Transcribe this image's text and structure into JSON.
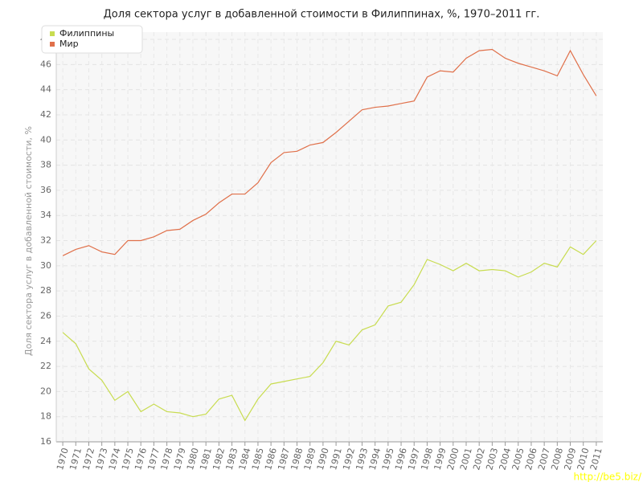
{
  "chart_data": {
    "type": "line",
    "title": "Доля сектора услуг в добавленной стоимости в Филиппинах, %, 1970–2011 гг.",
    "y_label": "Доля сектора услуг в добавленной стоимости, %",
    "watermark": "http://be5.biz/",
    "x": [
      1970,
      1971,
      1972,
      1973,
      1974,
      1975,
      1976,
      1977,
      1978,
      1979,
      1980,
      1981,
      1982,
      1983,
      1984,
      1985,
      1986,
      1987,
      1988,
      1989,
      1990,
      1991,
      1992,
      1993,
      1994,
      1995,
      1996,
      1997,
      1998,
      1999,
      2000,
      2001,
      2002,
      2003,
      2004,
      2005,
      2006,
      2007,
      2008,
      2009,
      2010,
      2011
    ],
    "series": [
      {
        "name": "Филиппины",
        "color": "#c8dc50",
        "values": [
          24.7,
          23.8,
          21.8,
          20.9,
          19.3,
          20.0,
          18.4,
          19.0,
          18.4,
          18.3,
          18.0,
          18.2,
          19.4,
          19.7,
          17.7,
          19.4,
          20.6,
          20.8,
          21.0,
          21.2,
          22.3,
          24.0,
          23.7,
          24.9,
          25.3,
          26.8,
          27.1,
          28.5,
          30.5,
          30.1,
          29.6,
          30.2,
          29.6,
          29.7,
          29.6,
          29.1,
          29.5,
          30.2,
          29.9,
          31.5,
          30.9,
          32.0
        ]
      },
      {
        "name": "Мир",
        "color": "#e0704a",
        "values": [
          30.8,
          31.3,
          31.6,
          31.1,
          30.9,
          32.0,
          32.0,
          32.3,
          32.8,
          32.9,
          33.6,
          34.1,
          35.0,
          35.7,
          35.7,
          36.6,
          38.2,
          39.0,
          39.1,
          39.6,
          39.8,
          40.6,
          41.5,
          42.4,
          42.6,
          42.7,
          42.9,
          43.1,
          45.0,
          45.5,
          45.4,
          46.5,
          47.1,
          47.2,
          46.5,
          46.1,
          45.8,
          45.5,
          45.1,
          47.1,
          45.2,
          43.5
        ]
      }
    ],
    "xlim": [
      1969.5,
      2011.5
    ],
    "ylim": [
      16,
      48
    ],
    "yticks": [
      16,
      18,
      20,
      22,
      24,
      26,
      28,
      30,
      32,
      34,
      36,
      38,
      40,
      42,
      44,
      46,
      48
    ],
    "grid": true,
    "legend": "top-left"
  }
}
